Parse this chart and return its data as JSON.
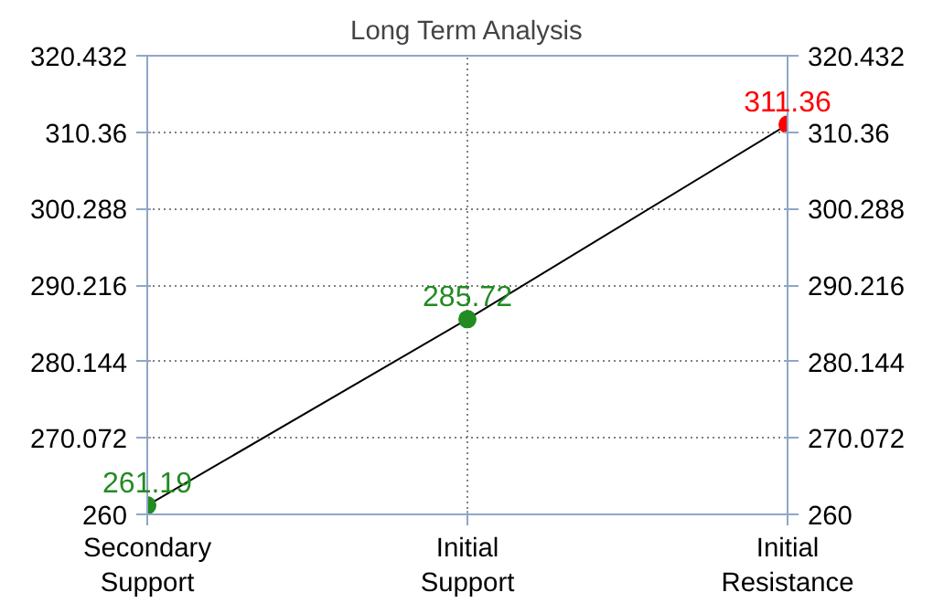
{
  "chart_data": {
    "type": "line",
    "title": "Long Term Analysis",
    "categories": [
      "Secondary Support",
      "Initial Support",
      "Initial Resistance"
    ],
    "series": [
      {
        "color": "#000000",
        "colors": [
          "#228b22",
          "#228b22",
          "#ff0000"
        ],
        "values": [
          261.19,
          285.72,
          311.36
        ]
      }
    ],
    "ylim": [
      260,
      320.432
    ],
    "yticks": [
      260,
      270.072,
      280.144,
      290.216,
      300.288,
      310.36,
      320.432
    ],
    "y2lim": [
      260,
      320.432
    ],
    "y2ticks": [
      260,
      270.072,
      280.144,
      290.216,
      300.288,
      310.36,
      320.432
    ],
    "grid": true,
    "marker": "circle",
    "data_labels": true
  }
}
